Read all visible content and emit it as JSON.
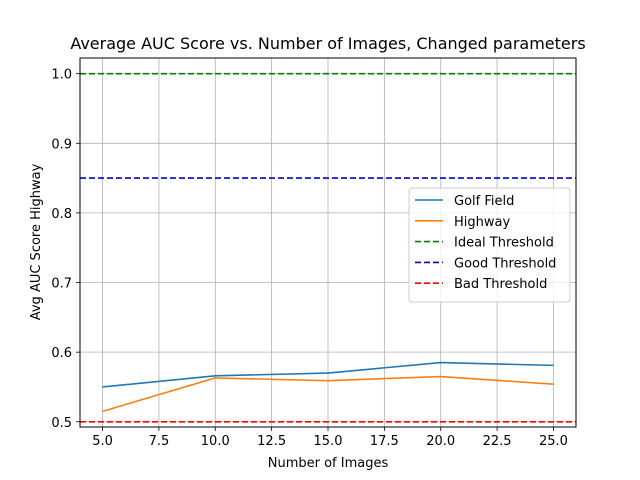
{
  "chart_data": {
    "type": "line",
    "title": "Average AUC Score vs. Number of Images, Changed parameters",
    "xlabel": "Number of Images",
    "ylabel": "Avg AUC Score Highway",
    "xlim": [
      4.0,
      26.0
    ],
    "ylim": [
      0.4925,
      1.0225
    ],
    "xticks": [
      5.0,
      7.5,
      10.0,
      12.5,
      15.0,
      17.5,
      20.0,
      22.5,
      25.0
    ],
    "xtick_labels": [
      "5.0",
      "7.5",
      "10.0",
      "12.5",
      "15.0",
      "17.5",
      "20.0",
      "22.5",
      "25.0"
    ],
    "yticks": [
      0.5,
      0.6,
      0.7,
      0.8,
      0.9,
      1.0
    ],
    "ytick_labels": [
      "0.5",
      "0.6",
      "0.7",
      "0.8",
      "0.9",
      "1.0"
    ],
    "grid": true,
    "legend_position": "center-right",
    "x": [
      5,
      10,
      15,
      20,
      25
    ],
    "series": [
      {
        "name": "Golf Field",
        "values": [
          0.55,
          0.566,
          0.57,
          0.585,
          0.581
        ],
        "color": "#1f77b4",
        "style": "solid"
      },
      {
        "name": "Highway",
        "values": [
          0.515,
          0.563,
          0.559,
          0.565,
          0.554
        ],
        "color": "#ff7f0e",
        "style": "solid"
      }
    ],
    "thresholds": [
      {
        "name": "Ideal Threshold",
        "value": 1.0,
        "color": "#008000",
        "style": "dashed"
      },
      {
        "name": "Good Threshold",
        "value": 0.85,
        "color": "#0000cd",
        "style": "dashed"
      },
      {
        "name": "Bad Threshold",
        "value": 0.5,
        "color": "#ff0000",
        "style": "dashed"
      }
    ]
  }
}
